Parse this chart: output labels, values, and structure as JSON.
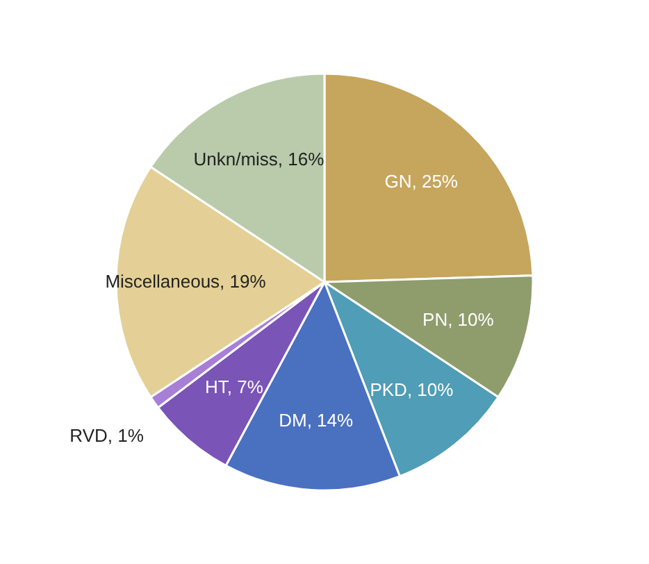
{
  "chart_data": {
    "type": "pie",
    "categories": [
      "GN",
      "PN",
      "PKD",
      "DM",
      "HT",
      "RVD",
      "Miscellaneous",
      "Unkn/miss"
    ],
    "value_labels": [
      "25%",
      "10%",
      "10%",
      "14%",
      "7%",
      "1%",
      "19%",
      "16%"
    ],
    "values": [
      25,
      10,
      10,
      14,
      7,
      1,
      19,
      16
    ],
    "colors": [
      "#c6a55c",
      "#8f9c6c",
      "#4f9db6",
      "#4a70c0",
      "#7a54b6",
      "#a77fd6",
      "#e4d096",
      "#b9cbab"
    ],
    "data_labels": true,
    "legend": false
  }
}
